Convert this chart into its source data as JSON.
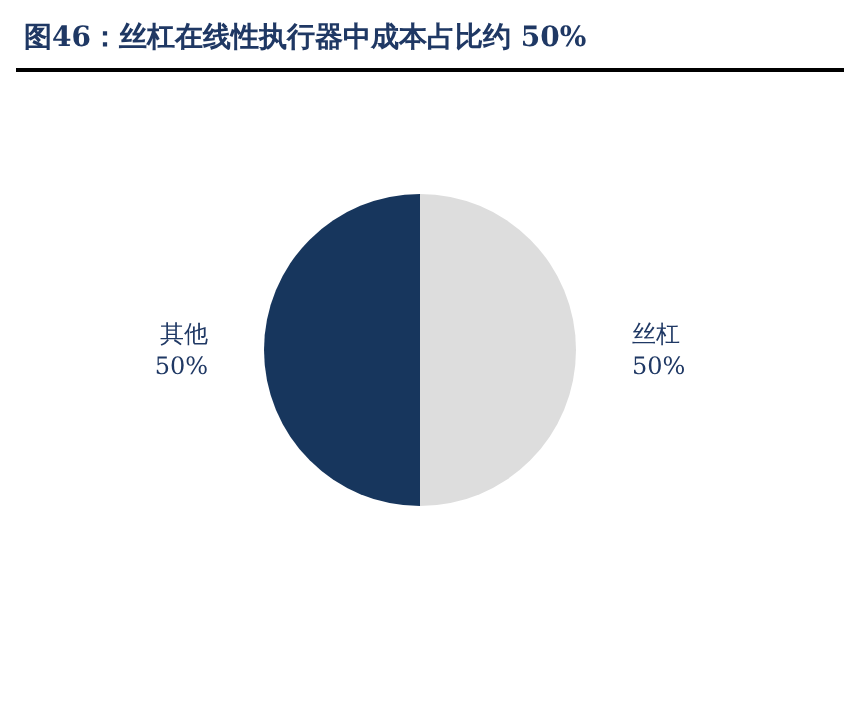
{
  "chart_data": {
    "type": "pie",
    "title": "图46：丝杠在线性执行器中成本占比约 50%",
    "categories": [
      "丝杠",
      "其他"
    ],
    "values": [
      50,
      50
    ],
    "value_labels": [
      "50%",
      "50%"
    ],
    "colors": [
      "#dddddd",
      "#17365d"
    ],
    "legend": false
  }
}
